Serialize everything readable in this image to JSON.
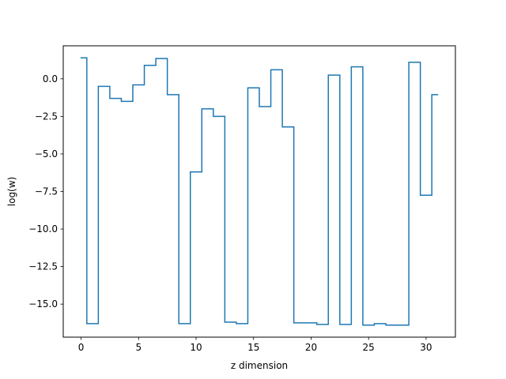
{
  "chart_data": {
    "type": "line",
    "drawstyle": "steps-mid",
    "xlabel": "z dimension",
    "ylabel": "log(w)",
    "xlim": [
      -1.55,
      32.55
    ],
    "ylim": [
      -17.2,
      2.2
    ],
    "xticks": [
      0,
      5,
      10,
      15,
      20,
      25,
      30
    ],
    "xtick_labels": [
      "0",
      "5",
      "10",
      "15",
      "20",
      "25",
      "30"
    ],
    "yticks": [
      0,
      -2.5,
      -5,
      -7.5,
      -10,
      -12.5,
      -15
    ],
    "ytick_labels": [
      "0.0",
      "−2.5",
      "−5.0",
      "−7.5",
      "−10.0",
      "−12.5",
      "−15.0"
    ],
    "grid": false,
    "series": [
      {
        "color": "#1f77b4",
        "x": [
          0,
          1,
          2,
          3,
          4,
          5,
          6,
          7,
          8,
          9,
          10,
          11,
          12,
          13,
          14,
          15,
          16,
          17,
          18,
          19,
          20,
          21,
          22,
          23,
          24,
          25,
          26,
          27,
          28,
          29,
          30,
          31
        ],
        "y": [
          1.4,
          -16.3,
          -0.5,
          -1.3,
          -1.5,
          -0.4,
          0.9,
          1.35,
          -1.05,
          -16.3,
          -6.2,
          -2.0,
          -2.5,
          -16.2,
          -16.3,
          -0.6,
          -1.85,
          0.6,
          -3.2,
          -16.25,
          -16.25,
          -16.35,
          0.25,
          -16.35,
          0.8,
          -16.4,
          -16.3,
          -16.4,
          -16.4,
          1.1,
          -7.75,
          -1.05
        ]
      }
    ]
  }
}
